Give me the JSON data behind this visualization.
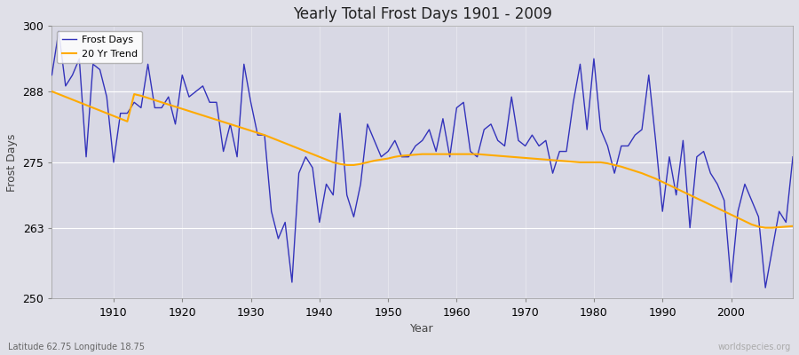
{
  "title": "Yearly Total Frost Days 1901 - 2009",
  "xlabel": "Year",
  "ylabel": "Frost Days",
  "lat_lon_label": "Latitude 62.75 Longitude 18.75",
  "watermark": "worldspecies.org",
  "frost_days_line_color": "#3333bb",
  "trend_line_color": "#ffaa00",
  "background_color": "#e0e0e8",
  "plot_bg_color": "#d8d8e4",
  "ylim": [
    250,
    300
  ],
  "xlim": [
    1901,
    2009
  ],
  "yticks": [
    250,
    263,
    275,
    288,
    300
  ],
  "xticks": [
    1910,
    1920,
    1930,
    1940,
    1950,
    1960,
    1970,
    1980,
    1990,
    2000
  ],
  "years": [
    1901,
    1902,
    1903,
    1904,
    1905,
    1906,
    1907,
    1908,
    1909,
    1910,
    1911,
    1912,
    1913,
    1914,
    1915,
    1916,
    1917,
    1918,
    1919,
    1920,
    1921,
    1922,
    1923,
    1924,
    1925,
    1926,
    1927,
    1928,
    1929,
    1930,
    1931,
    1932,
    1933,
    1934,
    1935,
    1936,
    1937,
    1938,
    1939,
    1940,
    1941,
    1942,
    1943,
    1944,
    1945,
    1946,
    1947,
    1948,
    1949,
    1950,
    1951,
    1952,
    1953,
    1954,
    1955,
    1956,
    1957,
    1958,
    1959,
    1960,
    1961,
    1962,
    1963,
    1964,
    1965,
    1966,
    1967,
    1968,
    1969,
    1970,
    1971,
    1972,
    1973,
    1974,
    1975,
    1976,
    1977,
    1978,
    1979,
    1980,
    1981,
    1982,
    1983,
    1984,
    1985,
    1986,
    1987,
    1988,
    1989,
    1990,
    1991,
    1992,
    1993,
    1994,
    1995,
    1996,
    1997,
    1998,
    1999,
    2000,
    2001,
    2002,
    2003,
    2004,
    2005,
    2006,
    2007,
    2008,
    2009
  ],
  "frost_days": [
    291,
    299,
    289,
    291,
    294,
    276,
    293,
    292,
    287,
    275,
    284,
    284,
    286,
    285,
    293,
    285,
    285,
    287,
    282,
    291,
    287,
    288,
    289,
    286,
    286,
    277,
    282,
    276,
    293,
    286,
    280,
    280,
    266,
    261,
    264,
    253,
    273,
    276,
    274,
    264,
    271,
    269,
    284,
    269,
    265,
    271,
    282,
    279,
    276,
    277,
    279,
    276,
    276,
    278,
    279,
    281,
    277,
    283,
    276,
    285,
    286,
    277,
    276,
    281,
    282,
    279,
    278,
    287,
    279,
    278,
    280,
    278,
    279,
    273,
    277,
    277,
    286,
    293,
    281,
    294,
    281,
    278,
    273,
    278,
    278,
    280,
    281,
    291,
    279,
    266,
    276,
    269,
    279,
    263,
    276,
    277,
    273,
    271,
    268,
    253,
    266,
    271,
    268,
    265,
    252,
    259,
    266,
    264,
    276
  ],
  "trend_values": [
    288.0,
    287.5,
    287.0,
    286.5,
    286.0,
    285.5,
    285.0,
    284.5,
    284.0,
    283.5,
    283.0,
    282.5,
    287.5,
    287.2,
    286.8,
    286.4,
    286.0,
    285.6,
    285.2,
    284.8,
    284.4,
    284.0,
    283.6,
    283.2,
    282.8,
    282.4,
    282.0,
    281.6,
    281.2,
    280.8,
    280.4,
    280.0,
    279.5,
    279.0,
    278.5,
    278.0,
    277.5,
    277.0,
    276.5,
    276.0,
    275.5,
    275.0,
    274.7,
    274.5,
    274.5,
    274.7,
    275.0,
    275.3,
    275.5,
    275.7,
    276.0,
    276.2,
    276.3,
    276.4,
    276.5,
    276.5,
    276.5,
    276.5,
    276.5,
    276.5,
    276.5,
    276.5,
    276.5,
    276.4,
    276.3,
    276.2,
    276.1,
    276.0,
    275.9,
    275.8,
    275.7,
    275.6,
    275.5,
    275.4,
    275.3,
    275.2,
    275.1,
    275.0,
    275.0,
    275.0,
    275.0,
    274.8,
    274.5,
    274.2,
    273.8,
    273.4,
    273.0,
    272.5,
    272.0,
    271.4,
    270.8,
    270.2,
    269.6,
    269.0,
    268.4,
    267.8,
    267.2,
    266.6,
    266.0,
    265.4,
    264.8,
    264.2,
    263.6,
    263.2,
    263.0,
    263.0,
    263.1,
    263.2,
    263.3
  ]
}
